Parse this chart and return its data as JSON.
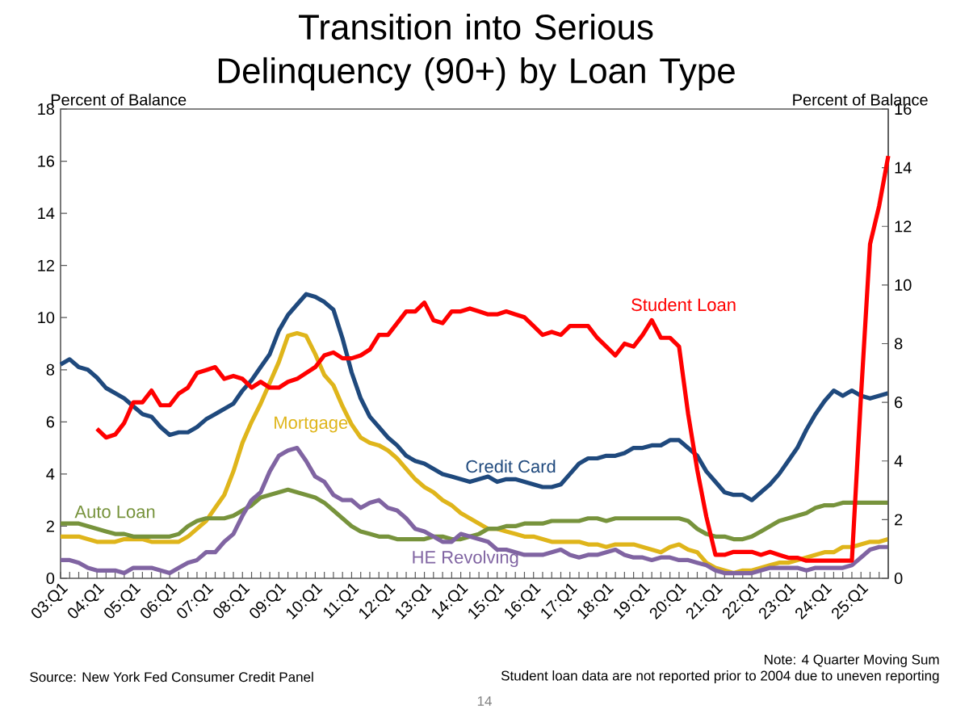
{
  "chart_data": {
    "type": "line",
    "title": "Transition into Serious Delinquency (90+) by Loan Type",
    "ylabel": "Percent of Balance",
    "y2label": "Percent of Balance",
    "categories": [
      "03:Q1",
      null,
      null,
      null,
      "04:Q1",
      null,
      null,
      null,
      "05:Q1",
      null,
      null,
      null,
      "06:Q1",
      null,
      null,
      null,
      "07:Q1",
      null,
      null,
      null,
      "08:Q1",
      null,
      null,
      null,
      "09:Q1",
      null,
      null,
      null,
      "10:Q1",
      null,
      null,
      null,
      "11:Q1",
      null,
      null,
      null,
      "12:Q1",
      null,
      null,
      null,
      "13:Q1",
      null,
      null,
      null,
      "14:Q1",
      null,
      null,
      null,
      "15:Q1",
      null,
      null,
      null,
      "16:Q1",
      null,
      null,
      null,
      "17:Q1",
      null,
      null,
      null,
      "18:Q1",
      null,
      null,
      null,
      "19:Q1",
      null,
      null,
      null,
      "20:Q1",
      null,
      null,
      null,
      "21:Q1",
      null,
      null,
      null,
      "22:Q1",
      null,
      null,
      null,
      "23:Q1",
      null,
      null,
      null,
      "24:Q1",
      null,
      null,
      null,
      "25:Q1",
      null,
      null,
      null
    ],
    "ylim": [
      0,
      18
    ],
    "yticks": [
      0,
      2,
      4,
      6,
      8,
      10,
      12,
      14,
      16,
      18
    ],
    "y2lim": [
      0,
      16
    ],
    "y2ticks": [
      0,
      2,
      4,
      6,
      8,
      10,
      12,
      14,
      16
    ],
    "legend": false,
    "grid": false,
    "marker": "none",
    "line_style": "solid",
    "series": [
      {
        "name": "Credit Card",
        "color": "#1f497d",
        "values": [
          8.2,
          8.4,
          8.1,
          8.0,
          7.7,
          7.3,
          7.1,
          6.9,
          6.6,
          6.3,
          6.2,
          5.8,
          5.5,
          5.6,
          5.6,
          5.8,
          6.1,
          6.3,
          6.5,
          6.7,
          7.2,
          7.6,
          8.1,
          8.6,
          9.5,
          10.1,
          10.5,
          10.9,
          10.8,
          10.6,
          10.3,
          9.2,
          7.9,
          6.9,
          6.2,
          5.8,
          5.4,
          5.1,
          4.7,
          4.5,
          4.4,
          4.2,
          4.0,
          3.9,
          3.8,
          3.7,
          3.8,
          3.9,
          3.7,
          3.8,
          3.8,
          3.7,
          3.6,
          3.5,
          3.5,
          3.6,
          4.0,
          4.4,
          4.6,
          4.6,
          4.7,
          4.7,
          4.8,
          5.0,
          5.0,
          5.1,
          5.1,
          5.3,
          5.3,
          5.0,
          4.7,
          4.1,
          3.7,
          3.3,
          3.2,
          3.2,
          3.0,
          3.3,
          3.6,
          4.0,
          4.5,
          5.0,
          5.7,
          6.3,
          6.8,
          7.2,
          7.0,
          7.2,
          7.0,
          6.9,
          7.0,
          7.1
        ]
      },
      {
        "name": "Student Loan",
        "color": "#ff0000",
        "axis": "y2",
        "values": [
          null,
          null,
          null,
          null,
          5.1,
          4.8,
          4.9,
          5.3,
          6.0,
          6.0,
          6.4,
          5.9,
          5.9,
          6.3,
          6.5,
          7.0,
          7.1,
          7.2,
          6.8,
          6.9,
          6.8,
          6.5,
          6.7,
          6.5,
          6.5,
          6.7,
          6.8,
          7.0,
          7.2,
          7.6,
          7.7,
          7.5,
          7.5,
          7.6,
          7.8,
          8.3,
          8.3,
          8.7,
          9.1,
          9.1,
          9.4,
          8.8,
          8.7,
          9.1,
          9.1,
          9.2,
          9.1,
          9.0,
          9.0,
          9.1,
          9.0,
          8.9,
          8.6,
          8.3,
          8.4,
          8.3,
          8.6,
          8.6,
          8.6,
          8.2,
          7.9,
          7.6,
          8.0,
          7.9,
          8.3,
          8.8,
          8.2,
          8.2,
          7.9,
          5.6,
          3.7,
          2.1,
          0.8,
          0.8,
          0.9,
          0.9,
          0.9,
          0.8,
          0.9,
          0.8,
          0.7,
          0.7,
          0.6,
          0.6,
          0.6,
          0.6,
          0.6,
          0.6,
          6.2,
          11.4,
          12.7,
          14.4
        ]
      },
      {
        "name": "Mortgage",
        "color": "#dfb51b",
        "values": [
          1.6,
          1.6,
          1.6,
          1.5,
          1.4,
          1.4,
          1.4,
          1.5,
          1.5,
          1.5,
          1.4,
          1.4,
          1.4,
          1.4,
          1.6,
          1.9,
          2.2,
          2.7,
          3.2,
          4.1,
          5.2,
          6.0,
          6.7,
          7.5,
          8.3,
          9.3,
          9.4,
          9.3,
          8.6,
          7.8,
          7.4,
          6.6,
          5.9,
          5.4,
          5.2,
          5.1,
          4.9,
          4.6,
          4.2,
          3.8,
          3.5,
          3.3,
          3.0,
          2.8,
          2.5,
          2.3,
          2.1,
          1.9,
          1.9,
          1.8,
          1.7,
          1.6,
          1.6,
          1.5,
          1.4,
          1.4,
          1.4,
          1.4,
          1.3,
          1.3,
          1.2,
          1.3,
          1.3,
          1.3,
          1.2,
          1.1,
          1.0,
          1.2,
          1.3,
          1.1,
          1.0,
          0.6,
          0.4,
          0.3,
          0.2,
          0.3,
          0.3,
          0.4,
          0.5,
          0.6,
          0.6,
          0.7,
          0.8,
          0.9,
          1.0,
          1.0,
          1.2,
          1.2,
          1.3,
          1.4,
          1.4,
          1.5
        ]
      },
      {
        "name": "Auto Loan",
        "color": "#77933c",
        "values": [
          2.1,
          2.1,
          2.1,
          2.0,
          1.9,
          1.8,
          1.7,
          1.7,
          1.6,
          1.6,
          1.6,
          1.6,
          1.6,
          1.7,
          2.0,
          2.2,
          2.3,
          2.3,
          2.3,
          2.4,
          2.6,
          2.8,
          3.1,
          3.2,
          3.3,
          3.4,
          3.3,
          3.2,
          3.1,
          2.9,
          2.6,
          2.3,
          2.0,
          1.8,
          1.7,
          1.6,
          1.6,
          1.5,
          1.5,
          1.5,
          1.5,
          1.6,
          1.6,
          1.5,
          1.5,
          1.6,
          1.7,
          1.9,
          1.9,
          2.0,
          2.0,
          2.1,
          2.1,
          2.1,
          2.2,
          2.2,
          2.2,
          2.2,
          2.3,
          2.3,
          2.2,
          2.3,
          2.3,
          2.3,
          2.3,
          2.3,
          2.3,
          2.3,
          2.3,
          2.2,
          1.9,
          1.7,
          1.6,
          1.6,
          1.5,
          1.5,
          1.6,
          1.8,
          2.0,
          2.2,
          2.3,
          2.4,
          2.5,
          2.7,
          2.8,
          2.8,
          2.9,
          2.9,
          2.9,
          2.9,
          2.9,
          2.9
        ]
      },
      {
        "name": "HE Revolving",
        "color": "#8064a2",
        "values": [
          0.7,
          0.7,
          0.6,
          0.4,
          0.3,
          0.3,
          0.3,
          0.2,
          0.4,
          0.4,
          0.4,
          0.3,
          0.2,
          0.4,
          0.6,
          0.7,
          1.0,
          1.0,
          1.4,
          1.7,
          2.4,
          3.0,
          3.3,
          4.1,
          4.7,
          4.9,
          5.0,
          4.5,
          3.9,
          3.7,
          3.2,
          3.0,
          3.0,
          2.7,
          2.9,
          3.0,
          2.7,
          2.6,
          2.3,
          1.9,
          1.8,
          1.6,
          1.4,
          1.4,
          1.7,
          1.6,
          1.5,
          1.4,
          1.1,
          1.1,
          1.0,
          0.9,
          0.9,
          0.9,
          1.0,
          1.1,
          0.9,
          0.8,
          0.9,
          0.9,
          1.0,
          1.1,
          0.9,
          0.8,
          0.8,
          0.7,
          0.8,
          0.8,
          0.7,
          0.7,
          0.6,
          0.5,
          0.3,
          0.2,
          0.2,
          0.2,
          0.2,
          0.3,
          0.4,
          0.4,
          0.4,
          0.4,
          0.3,
          0.4,
          0.4,
          0.4,
          0.4,
          0.5,
          0.8,
          1.1,
          1.2,
          1.2
        ]
      }
    ],
    "annotations": [
      "Note: 4 Quarter Moving Sum",
      "Source: New York Fed Consumer Credit Panel",
      "Student loan data are not reported prior to 2004 due to uneven reporting",
      "14"
    ]
  }
}
